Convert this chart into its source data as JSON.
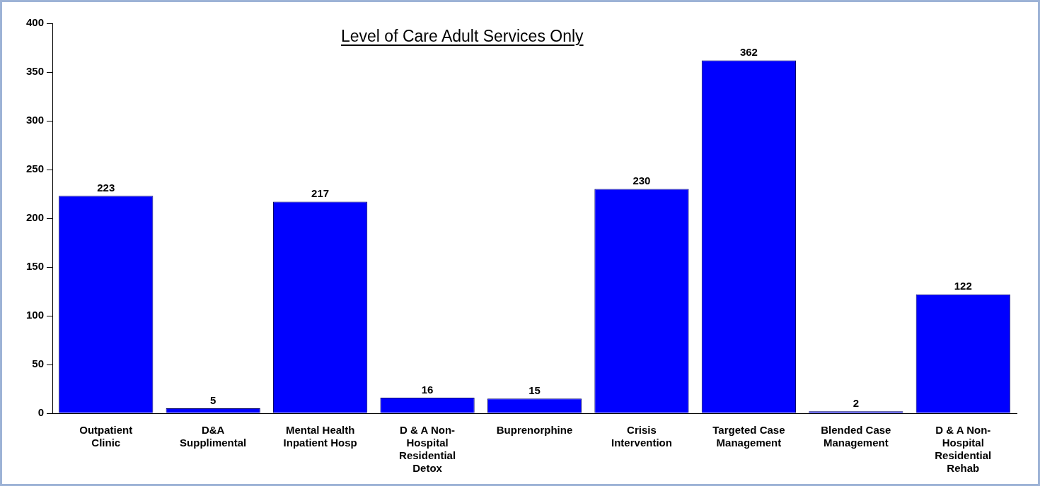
{
  "chart_data": {
    "type": "bar",
    "title": "Level of Care Adult Services Only",
    "categories": [
      "Outpatient Clinic",
      "D&A Supplimental",
      "Mental Health Inpatient Hosp",
      "D & A Non-Hospital Residential Detox",
      "Buprenorphine",
      "Crisis Intervention",
      "Targeted Case Management",
      "Blended Case Management",
      "D & A Non-Hospital Residential Rehab"
    ],
    "values": [
      223,
      5,
      217,
      16,
      15,
      230,
      362,
      2,
      122
    ],
    "color": "#0000ff",
    "ylim": [
      0,
      400
    ],
    "yticks": [
      0,
      50,
      100,
      150,
      200,
      250,
      300,
      350,
      400
    ],
    "grid": false,
    "legend": false,
    "data_labels": true
  }
}
